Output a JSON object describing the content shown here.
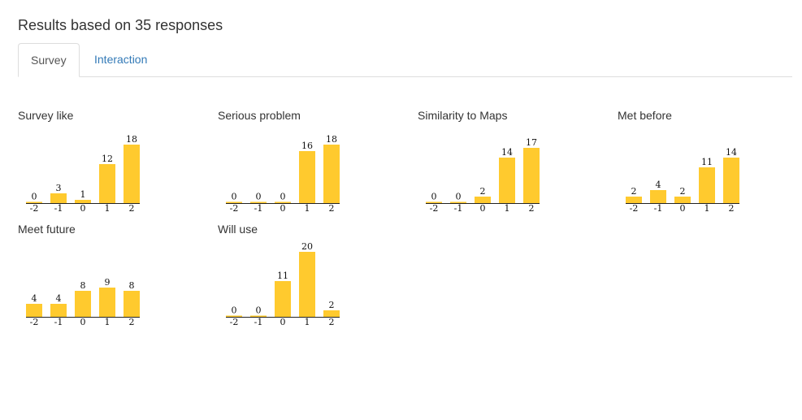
{
  "page": {
    "title": "Results based on 35 responses"
  },
  "tabs": [
    {
      "label": "Survey",
      "active": true
    },
    {
      "label": "Interaction",
      "active": false
    }
  ],
  "colors": {
    "bar": "#ffca2e",
    "link": "#337ab7",
    "border": "#dddddd"
  },
  "chart_data": [
    {
      "type": "bar",
      "title": "Survey like",
      "categories": [
        "-2",
        "-1",
        "0",
        "1",
        "2"
      ],
      "values": [
        0,
        3,
        1,
        12,
        18
      ]
    },
    {
      "type": "bar",
      "title": "Serious problem",
      "categories": [
        "-2",
        "-1",
        "0",
        "1",
        "2"
      ],
      "values": [
        0,
        0,
        0,
        16,
        18
      ]
    },
    {
      "type": "bar",
      "title": "Similarity to Maps",
      "categories": [
        "-2",
        "-1",
        "0",
        "1",
        "2"
      ],
      "values": [
        0,
        0,
        2,
        14,
        17
      ]
    },
    {
      "type": "bar",
      "title": "Met before",
      "categories": [
        "-2",
        "-1",
        "0",
        "1",
        "2"
      ],
      "values": [
        2,
        4,
        2,
        11,
        14
      ]
    },
    {
      "type": "bar",
      "title": "Meet future",
      "categories": [
        "-2",
        "-1",
        "0",
        "1",
        "2"
      ],
      "values": [
        4,
        4,
        8,
        9,
        8
      ]
    },
    {
      "type": "bar",
      "title": "Will use",
      "categories": [
        "-2",
        "-1",
        "0",
        "1",
        "2"
      ],
      "values": [
        0,
        0,
        11,
        20,
        2
      ]
    }
  ]
}
